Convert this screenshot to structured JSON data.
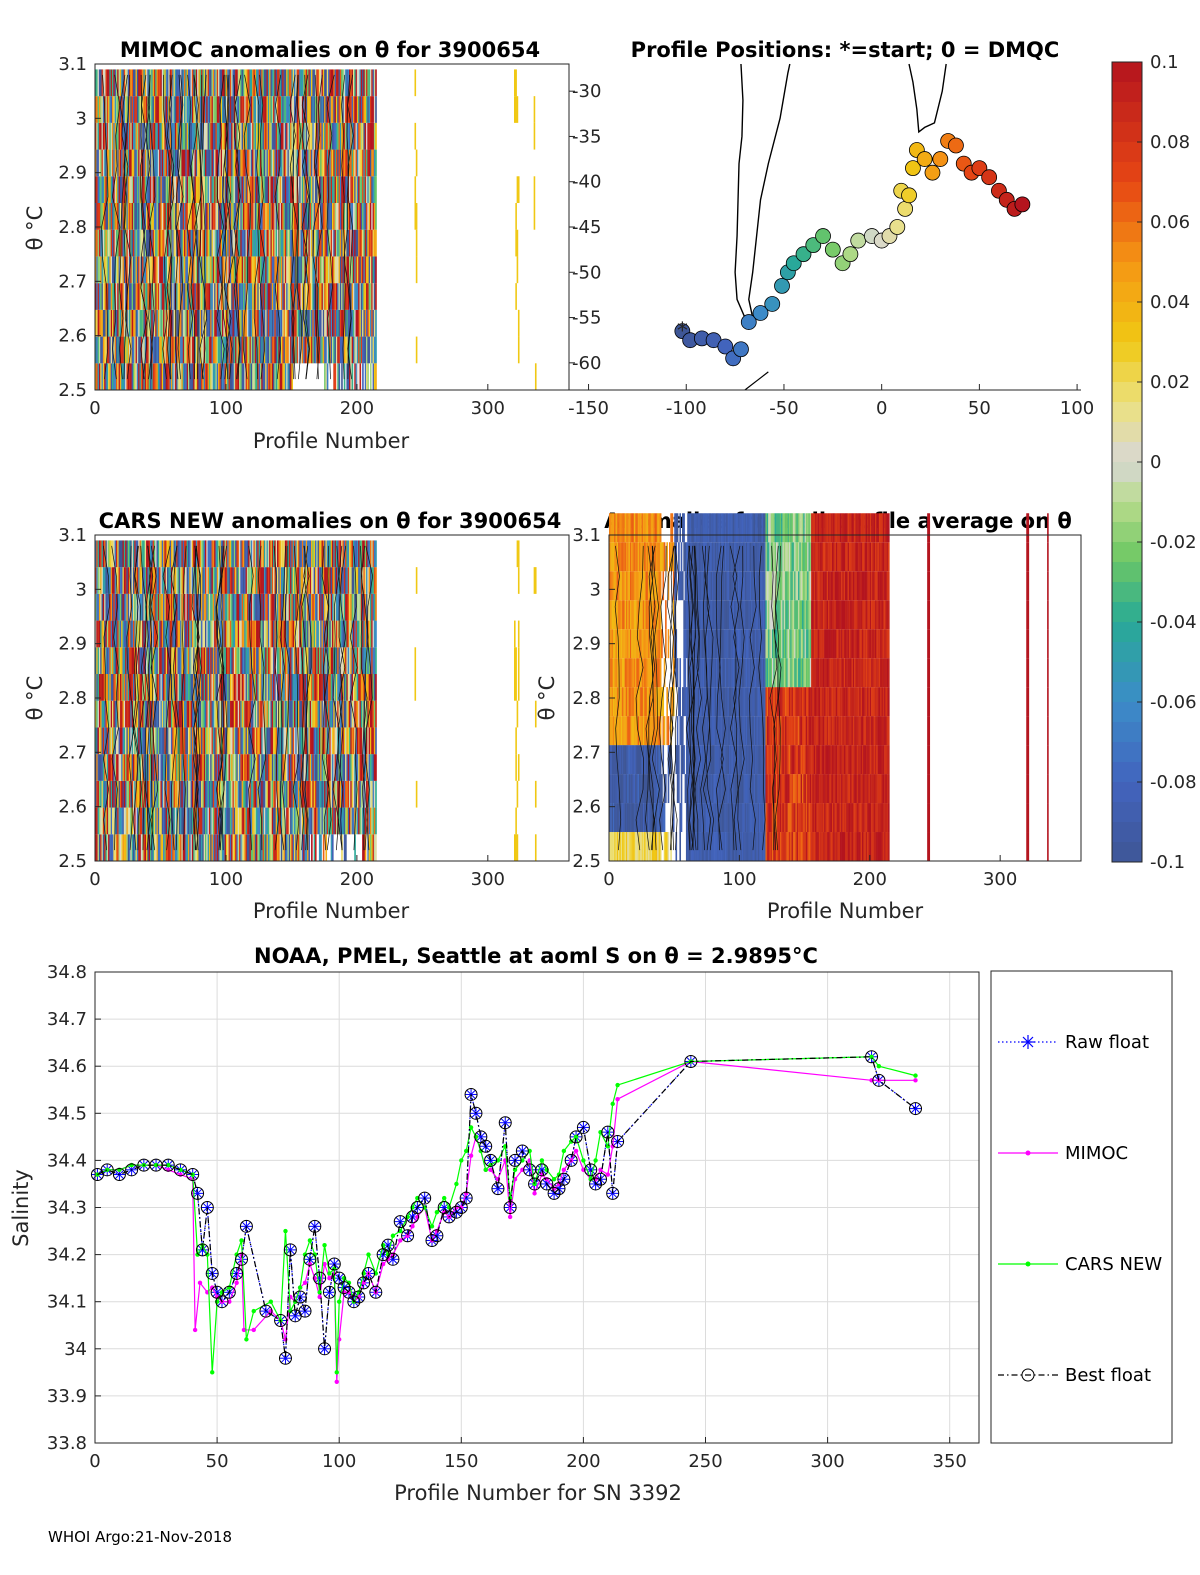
{
  "footer": "WHOI Argo:21-Nov-2018",
  "colorbar": {
    "ticks": [
      "0.1",
      "0.08",
      "0.06",
      "0.04",
      "0.02",
      "0",
      "-0.02",
      "-0.04",
      "-0.06",
      "-0.08",
      "-0.1"
    ],
    "range": [
      -0.1,
      0.1
    ]
  },
  "chart_data": [
    {
      "id": "mimoc",
      "type": "heatmap",
      "title": "MIMOC anomalies on θ  for 3900654",
      "xlabel": "Profile Number",
      "ylabel": "θ °C",
      "xlim": [
        0,
        362
      ],
      "ylim": [
        2.5,
        3.1
      ],
      "xticks": [
        "0",
        "100",
        "200",
        "300"
      ],
      "yticks": [
        "2.5",
        "2.6",
        "2.7",
        "2.8",
        "2.9",
        "3",
        "3.1"
      ]
    },
    {
      "id": "positions",
      "type": "scatter",
      "title": "Profile Positions: *=start; 0 = DMQC",
      "xlim": [
        -160,
        102
      ],
      "ylim": [
        -63,
        -27
      ],
      "xticks": [
        "-150",
        "-100",
        "-50",
        "0",
        "50",
        "100"
      ],
      "yticks": [
        "-30",
        "-35",
        "-40",
        "-45",
        "-50",
        "-55",
        "-60"
      ],
      "track": [
        [
          -102,
          -56.5
        ],
        [
          -98,
          -57.5
        ],
        [
          -92,
          -57.3
        ],
        [
          -86,
          -57.5
        ],
        [
          -80,
          -58.2
        ],
        [
          -76,
          -59.5
        ],
        [
          -72,
          -58.5
        ],
        [
          -68,
          -55.5
        ],
        [
          -62,
          -54.5
        ],
        [
          -56,
          -53.5
        ],
        [
          -51,
          -51.5
        ],
        [
          -48,
          -50
        ],
        [
          -45,
          -49
        ],
        [
          -40,
          -48
        ],
        [
          -35,
          -47
        ],
        [
          -30,
          -46
        ],
        [
          -25,
          -47.5
        ],
        [
          -20,
          -49
        ],
        [
          -16,
          -48
        ],
        [
          -12,
          -46.5
        ],
        [
          -5,
          -46
        ],
        [
          0,
          -46.5
        ],
        [
          4,
          -46
        ],
        [
          8,
          -45
        ],
        [
          12,
          -43
        ],
        [
          10,
          -41
        ],
        [
          14,
          -41.5
        ],
        [
          16,
          -38.5
        ],
        [
          18,
          -36.5
        ],
        [
          22,
          -37.5
        ],
        [
          26,
          -39
        ],
        [
          30,
          -37.5
        ],
        [
          34,
          -35.5
        ],
        [
          38,
          -36
        ],
        [
          42,
          -38
        ],
        [
          46,
          -39
        ],
        [
          50,
          -38.5
        ],
        [
          55,
          -39.5
        ],
        [
          60,
          -41
        ],
        [
          64,
          -42
        ],
        [
          68,
          -43
        ],
        [
          72,
          -42.5
        ]
      ],
      "start_marker": "*"
    },
    {
      "id": "cars",
      "type": "heatmap",
      "title": "CARS NEW anomalies on θ for 3900654",
      "xlabel": "Profile Number",
      "ylabel": "θ °C",
      "xlim": [
        0,
        362
      ],
      "ylim": [
        2.5,
        3.1
      ],
      "xticks": [
        "0",
        "100",
        "200",
        "300"
      ],
      "yticks": [
        "2.5",
        "2.6",
        "2.7",
        "2.8",
        "2.9",
        "3",
        "3.1"
      ]
    },
    {
      "id": "allavg",
      "type": "heatmap",
      "title": "Anomalies from all profile average on θ",
      "xlabel": "Profile Number",
      "ylabel": "θ °C",
      "xlim": [
        0,
        362
      ],
      "ylim": [
        2.5,
        3.1
      ],
      "xticks": [
        "0",
        "100",
        "200",
        "300"
      ],
      "yticks": [
        "2.5",
        "2.6",
        "2.7",
        "2.8",
        "2.9",
        "3",
        "3.1"
      ]
    },
    {
      "id": "salinity",
      "type": "line",
      "title": "NOAA, PMEL, Seattle at aoml S on θ = 2.9895°C",
      "xlabel": "Profile Number for SN 3392",
      "ylabel": "Salinity",
      "xlim": [
        0,
        362
      ],
      "ylim": [
        33.8,
        34.8
      ],
      "xticks": [
        "0",
        "50",
        "100",
        "150",
        "200",
        "250",
        "300",
        "350"
      ],
      "yticks": [
        "33.8",
        "33.9",
        "34",
        "34.1",
        "34.2",
        "34.3",
        "34.4",
        "34.5",
        "34.6",
        "34.7",
        "34.8"
      ],
      "legend_position": "right",
      "series": [
        {
          "name": "Raw float",
          "color": "#0000ff",
          "style": "dotted-star",
          "x": [
            1,
            5,
            10,
            15,
            20,
            25,
            30,
            35,
            40,
            42,
            44,
            46,
            48,
            50,
            52,
            55,
            58,
            60,
            62,
            70,
            76,
            78,
            80,
            82,
            84,
            86,
            88,
            90,
            92,
            94,
            96,
            98,
            100,
            102,
            104,
            106,
            108,
            110,
            112,
            115,
            118,
            120,
            122,
            125,
            128,
            130,
            132,
            135,
            138,
            140,
            143,
            145,
            148,
            150,
            152,
            154,
            156,
            158,
            160,
            162,
            165,
            168,
            170,
            172,
            175,
            178,
            180,
            183,
            185,
            188,
            190,
            192,
            195,
            197,
            200,
            203,
            205,
            207,
            210,
            212,
            214,
            244,
            318,
            321,
            336
          ],
          "y": [
            34.37,
            34.38,
            34.37,
            34.38,
            34.39,
            34.39,
            34.39,
            34.38,
            34.37,
            34.33,
            34.21,
            34.3,
            34.16,
            34.12,
            34.1,
            34.12,
            34.16,
            34.19,
            34.26,
            34.08,
            34.06,
            33.98,
            34.21,
            34.07,
            34.11,
            34.08,
            34.19,
            34.26,
            34.15,
            34.0,
            34.12,
            34.18,
            34.15,
            34.13,
            34.12,
            34.1,
            34.11,
            34.14,
            34.16,
            34.12,
            34.2,
            34.22,
            34.19,
            34.27,
            34.24,
            34.28,
            34.3,
            34.32,
            34.23,
            34.24,
            34.3,
            34.28,
            34.29,
            34.3,
            34.32,
            34.54,
            34.5,
            34.45,
            34.43,
            34.4,
            34.34,
            34.48,
            34.3,
            34.4,
            34.42,
            34.38,
            34.35,
            34.38,
            34.35,
            34.33,
            34.34,
            34.36,
            34.4,
            34.45,
            34.47,
            34.38,
            34.35,
            34.36,
            34.46,
            34.33,
            34.44,
            34.61,
            34.62,
            34.57,
            34.51
          ]
        },
        {
          "name": "MIMOC",
          "color": "#ff00ff",
          "style": "solid-dot",
          "x": [
            1,
            5,
            10,
            15,
            20,
            25,
            30,
            35,
            40,
            41,
            43,
            46,
            48,
            50,
            52,
            55,
            58,
            60,
            61,
            65,
            72,
            76,
            78,
            80,
            82,
            84,
            86,
            88,
            90,
            92,
            94,
            96,
            98,
            99,
            100,
            102,
            104,
            106,
            108,
            110,
            112,
            115,
            118,
            120,
            122,
            125,
            128,
            130,
            132,
            135,
            138,
            140,
            143,
            145,
            148,
            150,
            152,
            154,
            156,
            158,
            160,
            162,
            165,
            168,
            170,
            172,
            175,
            178,
            180,
            183,
            185,
            188,
            190,
            192,
            195,
            197,
            200,
            203,
            205,
            207,
            210,
            212,
            214,
            244,
            318,
            321,
            336
          ],
          "y": [
            34.37,
            34.38,
            34.38,
            34.39,
            34.39,
            34.39,
            34.38,
            34.37,
            34.36,
            34.04,
            34.14,
            34.12,
            34.13,
            34.11,
            34.1,
            34.1,
            34.14,
            34.2,
            34.04,
            34.04,
            34.08,
            34.06,
            34.02,
            34.11,
            34.1,
            34.13,
            34.14,
            34.18,
            34.15,
            34.11,
            34.18,
            34.15,
            34.16,
            33.93,
            34.02,
            34.12,
            34.12,
            34.1,
            34.11,
            34.14,
            34.16,
            34.12,
            34.18,
            34.19,
            34.2,
            34.23,
            34.24,
            34.26,
            34.28,
            34.3,
            34.23,
            34.25,
            34.29,
            34.28,
            34.3,
            34.3,
            34.33,
            34.41,
            34.45,
            34.42,
            34.38,
            34.38,
            34.36,
            34.4,
            34.28,
            34.36,
            34.38,
            34.4,
            34.33,
            34.37,
            34.36,
            34.34,
            34.35,
            34.38,
            34.4,
            34.42,
            34.38,
            34.36,
            34.36,
            34.38,
            34.37,
            34.43,
            34.53,
            34.61,
            34.57,
            34.57,
            34.57
          ]
        },
        {
          "name": "CARS NEW",
          "color": "#00ff00",
          "style": "solid-dot",
          "x": [
            1,
            5,
            10,
            15,
            20,
            25,
            30,
            35,
            40,
            42,
            44,
            46,
            48,
            50,
            52,
            55,
            58,
            60,
            62,
            65,
            72,
            76,
            78,
            80,
            82,
            84,
            86,
            88,
            90,
            92,
            94,
            96,
            98,
            99,
            100,
            102,
            104,
            106,
            108,
            110,
            112,
            115,
            118,
            120,
            122,
            125,
            128,
            130,
            132,
            135,
            138,
            140,
            143,
            145,
            148,
            150,
            152,
            154,
            156,
            158,
            160,
            162,
            165,
            168,
            170,
            172,
            175,
            178,
            180,
            183,
            185,
            188,
            190,
            192,
            195,
            197,
            200,
            203,
            205,
            207,
            210,
            212,
            214,
            244,
            318,
            321,
            336
          ],
          "y": [
            34.37,
            34.38,
            34.38,
            34.39,
            34.39,
            34.39,
            34.39,
            34.38,
            34.37,
            34.2,
            34.22,
            34.2,
            33.95,
            34.1,
            34.12,
            34.13,
            34.2,
            34.23,
            34.02,
            34.08,
            34.1,
            34.06,
            34.25,
            34.08,
            34.1,
            34.13,
            34.2,
            34.23,
            34.2,
            34.12,
            34.22,
            34.16,
            34.17,
            33.95,
            34.1,
            34.15,
            34.14,
            34.1,
            34.12,
            34.16,
            34.2,
            34.16,
            34.22,
            34.2,
            34.24,
            34.25,
            34.28,
            34.3,
            34.32,
            34.3,
            34.26,
            34.29,
            34.32,
            34.3,
            34.35,
            34.4,
            34.42,
            34.47,
            34.45,
            34.42,
            34.38,
            34.39,
            34.4,
            34.43,
            34.32,
            34.38,
            34.4,
            34.42,
            34.35,
            34.4,
            34.38,
            34.36,
            34.37,
            34.42,
            34.44,
            34.45,
            34.4,
            34.36,
            34.4,
            34.46,
            34.43,
            34.52,
            34.56,
            34.61,
            34.62,
            34.6,
            34.58
          ]
        },
        {
          "name": "Best float",
          "color": "#000000",
          "style": "dashdot-circle",
          "x": [
            1,
            5,
            10,
            15,
            20,
            25,
            30,
            35,
            40,
            42,
            44,
            46,
            48,
            50,
            52,
            55,
            58,
            60,
            62,
            70,
            76,
            78,
            80,
            82,
            84,
            86,
            88,
            90,
            92,
            94,
            96,
            98,
            100,
            102,
            104,
            106,
            108,
            110,
            112,
            115,
            118,
            120,
            122,
            125,
            128,
            130,
            132,
            135,
            138,
            140,
            143,
            145,
            148,
            150,
            152,
            154,
            156,
            158,
            160,
            162,
            165,
            168,
            170,
            172,
            175,
            178,
            180,
            183,
            185,
            188,
            190,
            192,
            195,
            197,
            200,
            203,
            205,
            207,
            210,
            212,
            214,
            244,
            318,
            321,
            336
          ],
          "y": [
            34.37,
            34.38,
            34.37,
            34.38,
            34.39,
            34.39,
            34.39,
            34.38,
            34.37,
            34.33,
            34.21,
            34.3,
            34.16,
            34.12,
            34.1,
            34.12,
            34.16,
            34.19,
            34.26,
            34.08,
            34.06,
            33.98,
            34.21,
            34.07,
            34.11,
            34.08,
            34.19,
            34.26,
            34.15,
            34.0,
            34.12,
            34.18,
            34.15,
            34.13,
            34.12,
            34.1,
            34.11,
            34.14,
            34.16,
            34.12,
            34.2,
            34.22,
            34.19,
            34.27,
            34.24,
            34.28,
            34.3,
            34.32,
            34.23,
            34.24,
            34.3,
            34.28,
            34.29,
            34.3,
            34.32,
            34.54,
            34.5,
            34.45,
            34.43,
            34.4,
            34.34,
            34.48,
            34.3,
            34.4,
            34.42,
            34.38,
            34.35,
            34.38,
            34.35,
            34.33,
            34.34,
            34.36,
            34.4,
            34.45,
            34.47,
            34.38,
            34.35,
            34.36,
            34.46,
            34.33,
            34.44,
            34.61,
            34.62,
            34.57,
            34.51
          ]
        }
      ]
    }
  ]
}
